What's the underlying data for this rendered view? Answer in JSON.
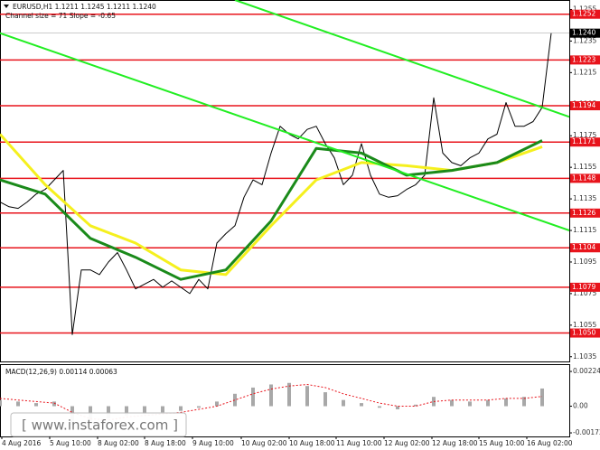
{
  "chart_data": [
    {
      "type": "line",
      "title": "EURUSD,H1  1.1211 1.1245 1.1211 1.1240",
      "subtitle": "Channel size = 71 Slope = -0.65",
      "xlim": [
        0,
        630
      ],
      "ylim": [
        1.1032,
        1.1261
      ],
      "xticks": [
        {
          "value": 2,
          "label": "4 Aug 2016"
        },
        {
          "value": 55,
          "label": "5 Aug 10:00"
        },
        {
          "value": 108,
          "label": "8 Aug 02:00"
        },
        {
          "value": 160,
          "label": "8 Aug 18:00"
        },
        {
          "value": 213,
          "label": "9 Aug 10:00"
        },
        {
          "value": 267,
          "label": "10 Aug 02:00"
        },
        {
          "value": 320,
          "label": "10 Aug 18:00"
        },
        {
          "value": 372,
          "label": "11 Aug 10:00"
        },
        {
          "value": 425,
          "label": "12 Aug 02:00"
        },
        {
          "value": 478,
          "label": "12 Aug 18:00"
        },
        {
          "value": 530,
          "label": "15 Aug 10:00"
        },
        {
          "value": 583,
          "label": "16 Aug 02:00"
        }
      ],
      "yticks": [
        1.1255,
        1.1235,
        1.1215,
        1.1195,
        1.1175,
        1.1155,
        1.1135,
        1.1115,
        1.1095,
        1.1075,
        1.1055,
        1.1035
      ],
      "levels": [
        1.1252,
        1.1223,
        1.1194,
        1.1171,
        1.1148,
        1.1126,
        1.1104,
        1.1079,
        {
          "value": 1.105,
          "label": "1.1050"
        }
      ],
      "level_color": "#e8141c",
      "current": {
        "value": 1.124,
        "label": "1.1240"
      },
      "grid": false,
      "series": [
        {
          "color": "#000000",
          "width": 1,
          "x": [
            0,
            10,
            20,
            30,
            40,
            50,
            60,
            70,
            80,
            90,
            100,
            110,
            120,
            130,
            140,
            150,
            160,
            170,
            180,
            190,
            200,
            210,
            220,
            230,
            240,
            250,
            260,
            270,
            280,
            290,
            300,
            310,
            320,
            330,
            340,
            350,
            360,
            370,
            380,
            390,
            400,
            410,
            420,
            430,
            440,
            450,
            460,
            470,
            480,
            490,
            500,
            510,
            520,
            530,
            540,
            550,
            560,
            570,
            580,
            590,
            600,
            610
          ],
          "values": [
            1.1133,
            1.113,
            1.1129,
            1.1133,
            1.1138,
            1.1141,
            1.1147,
            1.1153,
            1.1049,
            1.109,
            1.109,
            1.1087,
            1.1095,
            1.1101,
            1.109,
            1.1078,
            1.1081,
            1.1084,
            1.1079,
            1.1083,
            1.1079,
            1.1075,
            1.1084,
            1.1078,
            1.1107,
            1.1113,
            1.1118,
            1.1136,
            1.1147,
            1.1144,
            1.1164,
            1.1181,
            1.1176,
            1.1173,
            1.1179,
            1.1181,
            1.117,
            1.1161,
            1.1144,
            1.115,
            1.117,
            1.115,
            1.1138,
            1.1136,
            1.1137,
            1.1141,
            1.1144,
            1.115,
            1.1199,
            1.1164,
            1.1158,
            1.1156,
            1.1161,
            1.1164,
            1.1173,
            1.1176,
            1.1196,
            1.1181,
            1.1181,
            1.1184,
            1.1193,
            1.124
          ]
        },
        {
          "color": "#f5f01e",
          "width": 3,
          "x": [
            0,
            50,
            100,
            150,
            200,
            250,
            300,
            350,
            400,
            450,
            500,
            550,
            600
          ],
          "values": [
            1.1176,
            1.1144,
            1.1118,
            1.1107,
            1.109,
            1.1087,
            1.1118,
            1.1147,
            1.1158,
            1.1156,
            1.1153,
            1.1158,
            1.1168
          ]
        },
        {
          "color": "#1a8a1a",
          "width": 3,
          "x": [
            0,
            50,
            100,
            150,
            200,
            250,
            300,
            350,
            400,
            450,
            500,
            550,
            600
          ],
          "values": [
            1.1147,
            1.1138,
            1.111,
            1.1098,
            1.1084,
            1.109,
            1.1121,
            1.1167,
            1.1164,
            1.115,
            1.1153,
            1.1158,
            1.1172
          ]
        },
        {
          "color": "#22ee22",
          "width": 2,
          "x": [
            260,
            630
          ],
          "values": [
            1.1261,
            1.1187
          ]
        },
        {
          "color": "#22ee22",
          "width": 2,
          "x": [
            0,
            630
          ],
          "values": [
            1.124,
            1.1115
          ]
        }
      ]
    },
    {
      "type": "bar",
      "title": "MACD(12,26,9) 0.00114 0.00063",
      "xlim": [
        0,
        630
      ],
      "ylim": [
        -0.00195,
        0.00271
      ],
      "yticks": [
        0.00224,
        {
          "value": 0,
          "label": "0.00"
        },
        -0.00172
      ],
      "series": [
        {
          "color": "#a8a8a8",
          "x": [
            0,
            20,
            40,
            60,
            80,
            100,
            120,
            140,
            160,
            180,
            200,
            220,
            240,
            260,
            280,
            300,
            320,
            340,
            360,
            380,
            400,
            420,
            440,
            460,
            480,
            500,
            520,
            540,
            560,
            580,
            600
          ],
          "values": [
            0.0004,
            0.0003,
            0.0002,
            0.0003,
            -0.0012,
            -0.001,
            -0.0008,
            -0.0006,
            -0.0005,
            -0.0004,
            -0.0003,
            -0.0001,
            0.0003,
            0.0008,
            0.0012,
            0.0014,
            0.0015,
            0.0013,
            0.0009,
            0.0004,
            0.0002,
            -0.0001,
            -0.0002,
            0.0001,
            0.0006,
            0.0004,
            0.0003,
            0.0004,
            0.0005,
            0.0006,
            0.00114
          ]
        },
        {
          "color": "#e8141c",
          "type": "line",
          "x": [
            0,
            20,
            40,
            60,
            80,
            100,
            120,
            140,
            160,
            180,
            200,
            220,
            240,
            260,
            280,
            300,
            320,
            340,
            360,
            380,
            400,
            420,
            440,
            460,
            480,
            500,
            520,
            540,
            560,
            580,
            600
          ],
          "values": [
            0.0005,
            0.0004,
            0.0003,
            0.0002,
            -0.0004,
            -0.0008,
            -0.0009,
            -0.0007,
            -0.0006,
            -0.0005,
            -0.0004,
            -0.0002,
            0,
            0.0004,
            0.0008,
            0.0011,
            0.0013,
            0.0014,
            0.0012,
            0.0008,
            0.0005,
            0.0002,
            0,
            0,
            0.0003,
            0.0004,
            0.0004,
            0.0004,
            0.0005,
            0.0005,
            0.00063
          ]
        }
      ]
    }
  ],
  "watermark": "[ www.instaforex.com ]"
}
